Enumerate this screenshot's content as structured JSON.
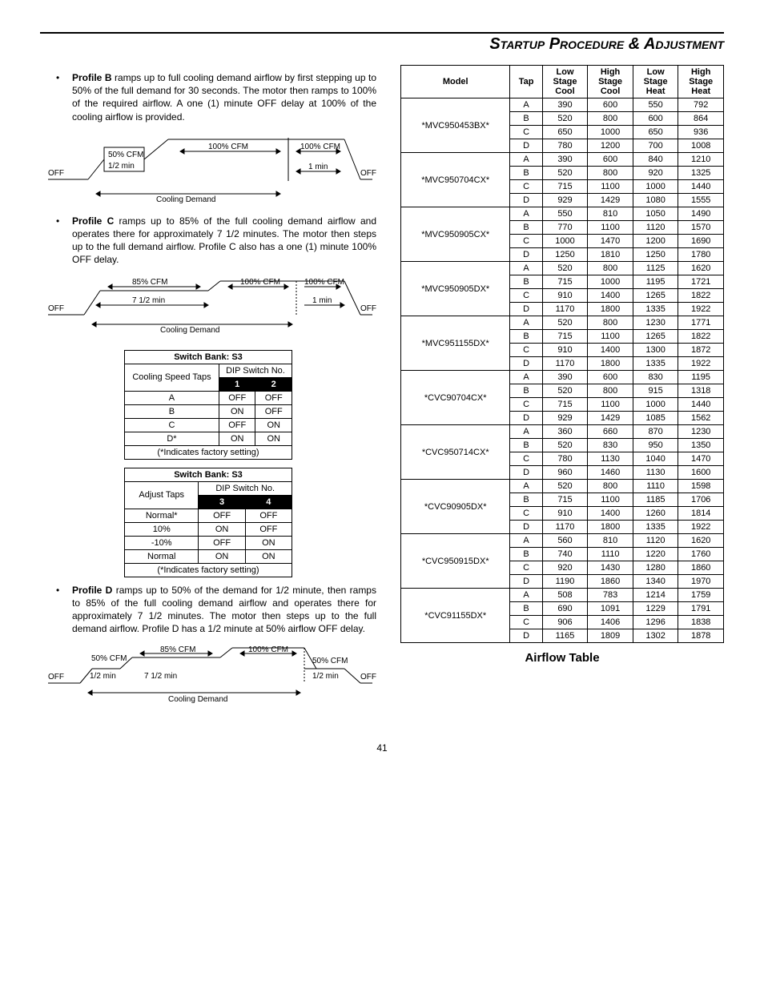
{
  "header": {
    "title": "Startup Procedure & Adjustment"
  },
  "left": {
    "profiles": {
      "b": "ramps up to full cooling demand airflow by first stepping up to 50% of the full demand for 30 seconds.  The motor then ramps to 100% of the required airflow.  A one (1) minute OFF delay at 100% of the cooling airflow is provided.",
      "c": "ramps up to 85% of the full cooling demand airflow and operates there for approximately 7 1/2 minutes.  The motor then steps up to the full demand airflow. Profile C also has a one (1) minute 100% OFF delay.",
      "d": "ramps up to 50% of the demand for 1/2 minute, then ramps to 85% of the full cooling demand airflow and operates there for approximately 7 1/2 minutes.  The motor then steps up to the full demand airflow.  Profile D has a 1/2 minute at 50% airflow OFF delay."
    },
    "profile_labels": {
      "b": "Profile B",
      "c": "Profile C",
      "d": "Profile D"
    },
    "diagram_common": {
      "off": "OFF",
      "cooling_demand": "Cooling Demand"
    },
    "diagram_b": {
      "l50": "50% CFM",
      "l100": "100% CFM",
      "lhalf": "1/2 min",
      "l1min": "1 min"
    },
    "diagram_c": {
      "l85": "85% CFM",
      "l100": "100% CFM",
      "l712": "7 1/2 min",
      "l1min": "1 min"
    },
    "diagram_d": {
      "l50": "50% CFM",
      "l85": "85% CFM",
      "l100": "100% CFM",
      "lhalf": "1/2 min",
      "l712": "7 1/2 min"
    },
    "switch_table_1": {
      "title": "Switch Bank: S3",
      "row_label": "Cooling Speed Taps",
      "dip_label": "DIP Switch No.",
      "cols": [
        "1",
        "2"
      ],
      "rows": [
        {
          "tap": "A",
          "v": [
            "OFF",
            "OFF"
          ]
        },
        {
          "tap": "B",
          "v": [
            "ON",
            "OFF"
          ]
        },
        {
          "tap": "C",
          "v": [
            "OFF",
            "ON"
          ]
        },
        {
          "tap": "D*",
          "v": [
            "ON",
            "ON"
          ]
        }
      ],
      "footer": "(*Indicates factory setting)"
    },
    "switch_table_2": {
      "title": "Switch Bank: S3",
      "row_label": "Adjust Taps",
      "dip_label": "DIP Switch No.",
      "cols": [
        "3",
        "4"
      ],
      "rows": [
        {
          "tap": "Normal*",
          "v": [
            "OFF",
            "OFF"
          ]
        },
        {
          "tap": "10%",
          "v": [
            "ON",
            "OFF"
          ]
        },
        {
          "tap": "-10%",
          "v": [
            "OFF",
            "ON"
          ]
        },
        {
          "tap": "Normal",
          "v": [
            "ON",
            "ON"
          ]
        }
      ],
      "footer": "(*Indicates factory setting)"
    }
  },
  "airflow": {
    "caption": "Airflow Table",
    "headers": {
      "model": "Model",
      "tap": "Tap",
      "lsc": "Low Stage Cool",
      "hsc": "High Stage Cool",
      "lsh": "Low Stage Heat",
      "hsh": "High Stage Heat"
    },
    "groups": [
      {
        "model": "*MVC950453BX*",
        "rows": [
          {
            "t": "A",
            "lsc": 390,
            "hsc": 600,
            "lsh": 550,
            "hsh": 792
          },
          {
            "t": "B",
            "lsc": 520,
            "hsc": 800,
            "lsh": 600,
            "hsh": 864
          },
          {
            "t": "C",
            "lsc": 650,
            "hsc": 1000,
            "lsh": 650,
            "hsh": 936
          },
          {
            "t": "D",
            "lsc": 780,
            "hsc": 1200,
            "lsh": 700,
            "hsh": 1008
          }
        ]
      },
      {
        "model": "*MVC950704CX*",
        "rows": [
          {
            "t": "A",
            "lsc": 390,
            "hsc": 600,
            "lsh": 840,
            "hsh": 1210
          },
          {
            "t": "B",
            "lsc": 520,
            "hsc": 800,
            "lsh": 920,
            "hsh": 1325
          },
          {
            "t": "C",
            "lsc": 715,
            "hsc": 1100,
            "lsh": 1000,
            "hsh": 1440
          },
          {
            "t": "D",
            "lsc": 929,
            "hsc": 1429,
            "lsh": 1080,
            "hsh": 1555
          }
        ]
      },
      {
        "model": "*MVC950905CX*",
        "rows": [
          {
            "t": "A",
            "lsc": 550,
            "hsc": 810,
            "lsh": 1050,
            "hsh": 1490
          },
          {
            "t": "B",
            "lsc": 770,
            "hsc": 1100,
            "lsh": 1120,
            "hsh": 1570
          },
          {
            "t": "C",
            "lsc": 1000,
            "hsc": 1470,
            "lsh": 1200,
            "hsh": 1690
          },
          {
            "t": "D",
            "lsc": 1250,
            "hsc": 1810,
            "lsh": 1250,
            "hsh": 1780
          }
        ]
      },
      {
        "model": "*MVC950905DX*",
        "rows": [
          {
            "t": "A",
            "lsc": 520,
            "hsc": 800,
            "lsh": 1125,
            "hsh": 1620
          },
          {
            "t": "B",
            "lsc": 715,
            "hsc": 1000,
            "lsh": 1195,
            "hsh": 1721
          },
          {
            "t": "C",
            "lsc": 910,
            "hsc": 1400,
            "lsh": 1265,
            "hsh": 1822
          },
          {
            "t": "D",
            "lsc": 1170,
            "hsc": 1800,
            "lsh": 1335,
            "hsh": 1922
          }
        ]
      },
      {
        "model": "*MVC951155DX*",
        "rows": [
          {
            "t": "A",
            "lsc": 520,
            "hsc": 800,
            "lsh": 1230,
            "hsh": 1771
          },
          {
            "t": "B",
            "lsc": 715,
            "hsc": 1100,
            "lsh": 1265,
            "hsh": 1822
          },
          {
            "t": "C",
            "lsc": 910,
            "hsc": 1400,
            "lsh": 1300,
            "hsh": 1872
          },
          {
            "t": "D",
            "lsc": 1170,
            "hsc": 1800,
            "lsh": 1335,
            "hsh": 1922
          }
        ]
      },
      {
        "model": "*CVC90704CX*",
        "rows": [
          {
            "t": "A",
            "lsc": 390,
            "hsc": 600,
            "lsh": 830,
            "hsh": 1195
          },
          {
            "t": "B",
            "lsc": 520,
            "hsc": 800,
            "lsh": 915,
            "hsh": 1318
          },
          {
            "t": "C",
            "lsc": 715,
            "hsc": 1100,
            "lsh": 1000,
            "hsh": 1440
          },
          {
            "t": "D",
            "lsc": 929,
            "hsc": 1429,
            "lsh": 1085,
            "hsh": 1562
          }
        ]
      },
      {
        "model": "*CVC950714CX*",
        "rows": [
          {
            "t": "A",
            "lsc": 360,
            "hsc": 660,
            "lsh": 870,
            "hsh": 1230
          },
          {
            "t": "B",
            "lsc": 520,
            "hsc": 830,
            "lsh": 950,
            "hsh": 1350
          },
          {
            "t": "C",
            "lsc": 780,
            "hsc": 1130,
            "lsh": 1040,
            "hsh": 1470
          },
          {
            "t": "D",
            "lsc": 960,
            "hsc": 1460,
            "lsh": 1130,
            "hsh": 1600
          }
        ]
      },
      {
        "model": "*CVC90905DX*",
        "rows": [
          {
            "t": "A",
            "lsc": 520,
            "hsc": 800,
            "lsh": 1110,
            "hsh": 1598
          },
          {
            "t": "B",
            "lsc": 715,
            "hsc": 1100,
            "lsh": 1185,
            "hsh": 1706
          },
          {
            "t": "C",
            "lsc": 910,
            "hsc": 1400,
            "lsh": 1260,
            "hsh": 1814
          },
          {
            "t": "D",
            "lsc": 1170,
            "hsc": 1800,
            "lsh": 1335,
            "hsh": 1922
          }
        ]
      },
      {
        "model": "*CVC950915DX*",
        "rows": [
          {
            "t": "A",
            "lsc": 560,
            "hsc": 810,
            "lsh": 1120,
            "hsh": 1620
          },
          {
            "t": "B",
            "lsc": 740,
            "hsc": 1110,
            "lsh": 1220,
            "hsh": 1760
          },
          {
            "t": "C",
            "lsc": 920,
            "hsc": 1430,
            "lsh": 1280,
            "hsh": 1860
          },
          {
            "t": "D",
            "lsc": 1190,
            "hsc": 1860,
            "lsh": 1340,
            "hsh": 1970
          }
        ]
      },
      {
        "model": "*CVC91155DX*",
        "rows": [
          {
            "t": "A",
            "lsc": 508,
            "hsc": 783,
            "lsh": 1214,
            "hsh": 1759
          },
          {
            "t": "B",
            "lsc": 690,
            "hsc": 1091,
            "lsh": 1229,
            "hsh": 1791
          },
          {
            "t": "C",
            "lsc": 906,
            "hsc": 1406,
            "lsh": 1296,
            "hsh": 1838
          },
          {
            "t": "D",
            "lsc": 1165,
            "hsc": 1809,
            "lsh": 1302,
            "hsh": 1878
          }
        ]
      }
    ]
  },
  "page": "41"
}
